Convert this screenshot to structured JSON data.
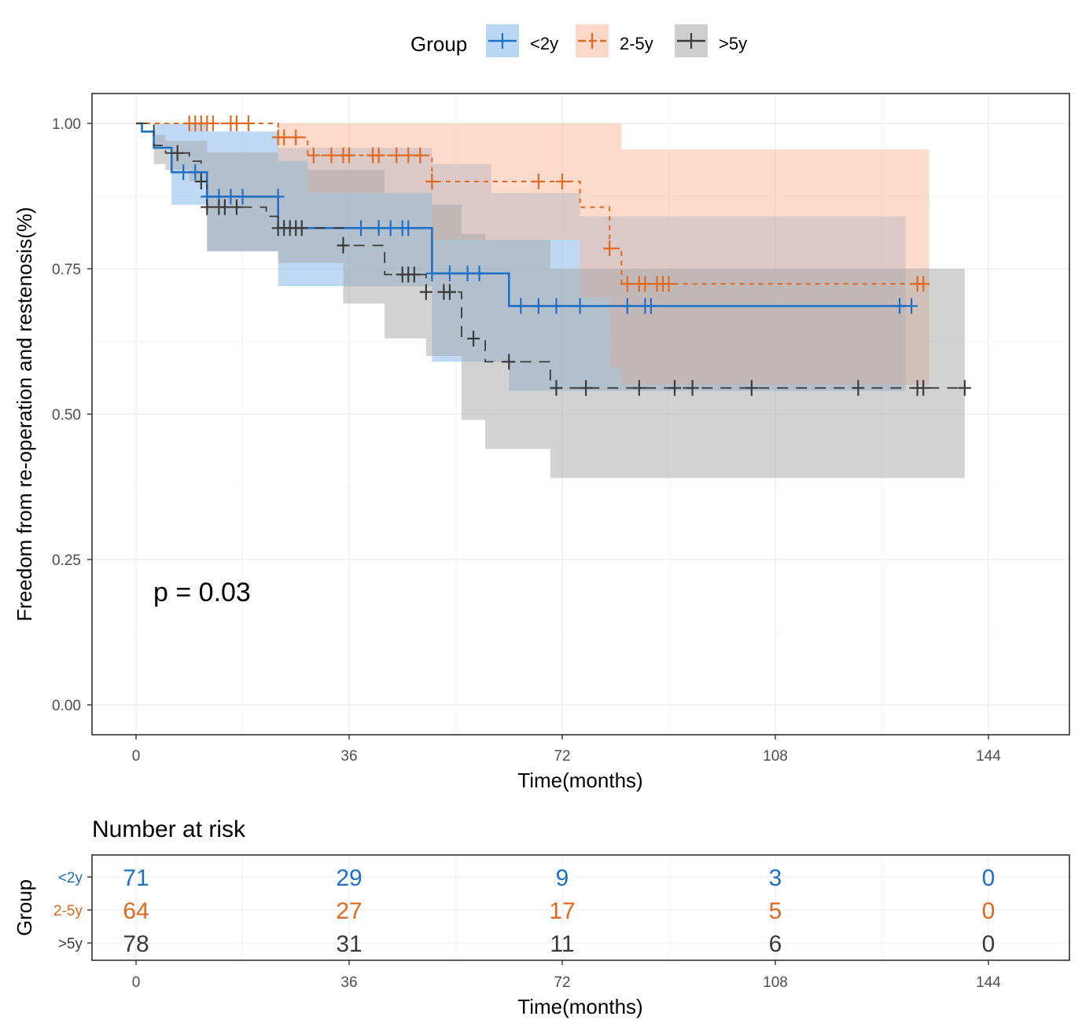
{
  "chart_data": [
    {
      "type": "line",
      "subtype": "kaplan-meier",
      "title": "",
      "xlabel": "Time(months)",
      "ylabel": "Freedom from re-operation and restenosis(%)",
      "xlim": [
        -4,
        146
      ],
      "ylim": [
        -0.05,
        1.05
      ],
      "xticks": [
        0,
        36,
        72,
        108,
        144
      ],
      "xtick_labels": [
        "0",
        "36",
        "72",
        "108",
        "144"
      ],
      "yticks": [
        0,
        0.25,
        0.5,
        0.75,
        1.0
      ],
      "ytick_labels": [
        "0.00",
        "0.25",
        "0.50",
        "0.75",
        "1.00"
      ],
      "grid": true,
      "legend": {
        "title": "Group",
        "position": "top"
      },
      "annotation": "p = 0.03",
      "series": [
        {
          "name": "<2y",
          "color": "#1f6fc6",
          "band_color": "#7fb4ea",
          "linestyle": "solid",
          "steps": [
            [
              0,
              1.0
            ],
            [
              1,
              0.986
            ],
            [
              3,
              0.958
            ],
            [
              6,
              0.916
            ],
            [
              12,
              0.874
            ],
            [
              24,
              0.82
            ],
            [
              50,
              0.742
            ],
            [
              63,
              0.686
            ],
            [
              130,
              0.686
            ]
          ],
          "ci_upper": [
            [
              0,
              1.0
            ],
            [
              3,
              1.0
            ],
            [
              12,
              0.986
            ],
            [
              24,
              0.958
            ],
            [
              50,
              0.93
            ],
            [
              60,
              0.88
            ],
            [
              75,
              0.84
            ],
            [
              130,
              0.84
            ]
          ],
          "ci_lower": [
            [
              0,
              1.0
            ],
            [
              3,
              0.96
            ],
            [
              6,
              0.86
            ],
            [
              12,
              0.78
            ],
            [
              24,
              0.72
            ],
            [
              50,
              0.59
            ],
            [
              63,
              0.54
            ],
            [
              130,
              0.54
            ]
          ],
          "censored": [
            [
              8,
              0.916
            ],
            [
              10,
              0.916
            ],
            [
              12,
              0.874
            ],
            [
              14,
              0.874
            ],
            [
              16,
              0.874
            ],
            [
              18,
              0.874
            ],
            [
              24,
              0.874
            ],
            [
              38,
              0.82
            ],
            [
              41,
              0.82
            ],
            [
              43,
              0.82
            ],
            [
              45,
              0.82
            ],
            [
              46,
              0.82
            ],
            [
              50,
              0.742
            ],
            [
              53,
              0.742
            ],
            [
              56,
              0.742
            ],
            [
              58,
              0.742
            ],
            [
              65,
              0.686
            ],
            [
              68,
              0.686
            ],
            [
              71,
              0.686
            ],
            [
              75,
              0.686
            ],
            [
              83,
              0.686
            ],
            [
              86,
              0.686
            ],
            [
              87,
              0.686
            ],
            [
              129,
              0.686
            ],
            [
              131,
              0.686
            ]
          ]
        },
        {
          "name": "2-5y",
          "color": "#e0681f",
          "band_color": "#f9b89a",
          "linestyle": "dashed",
          "steps": [
            [
              0,
              1.0
            ],
            [
              24,
              0.976
            ],
            [
              29,
              0.945
            ],
            [
              50,
              0.9
            ],
            [
              75,
              0.856
            ],
            [
              80,
              0.785
            ],
            [
              82,
              0.724
            ],
            [
              131,
              0.724
            ]
          ],
          "ci_upper": [
            [
              0,
              1.0
            ],
            [
              80,
              1.0
            ],
            [
              82,
              0.99
            ],
            [
              82,
              0.955
            ],
            [
              134,
              0.955
            ]
          ],
          "ci_lower": [
            [
              0,
              1.0
            ],
            [
              24,
              0.935
            ],
            [
              29,
              0.88
            ],
            [
              50,
              0.8
            ],
            [
              75,
              0.7
            ],
            [
              80,
              0.58
            ],
            [
              82,
              0.55
            ],
            [
              134,
              0.55
            ]
          ],
          "censored": [
            [
              9,
              1.0
            ],
            [
              10,
              1.0
            ],
            [
              11,
              1.0
            ],
            [
              12,
              1.0
            ],
            [
              13,
              1.0
            ],
            [
              16,
              1.0
            ],
            [
              17,
              1.0
            ],
            [
              19,
              1.0
            ],
            [
              24,
              0.976
            ],
            [
              25,
              0.976
            ],
            [
              27,
              0.976
            ],
            [
              30,
              0.945
            ],
            [
              33,
              0.945
            ],
            [
              35,
              0.945
            ],
            [
              36,
              0.945
            ],
            [
              40,
              0.945
            ],
            [
              41,
              0.945
            ],
            [
              44,
              0.945
            ],
            [
              46,
              0.945
            ],
            [
              48,
              0.945
            ],
            [
              50,
              0.9
            ],
            [
              68,
              0.9
            ],
            [
              72,
              0.9
            ],
            [
              80,
              0.785
            ],
            [
              83,
              0.724
            ],
            [
              85,
              0.724
            ],
            [
              86,
              0.724
            ],
            [
              88,
              0.724
            ],
            [
              89,
              0.724
            ],
            [
              90,
              0.724
            ],
            [
              132,
              0.724
            ],
            [
              133,
              0.724
            ]
          ]
        },
        {
          "name": ">5y",
          "color": "#3a3a3a",
          "band_color": "#a6a6a6",
          "linestyle": "longdash",
          "steps": [
            [
              0,
              1.0
            ],
            [
              3,
              0.962
            ],
            [
              5,
              0.949
            ],
            [
              9,
              0.935
            ],
            [
              11,
              0.9
            ],
            [
              12,
              0.856
            ],
            [
              22,
              0.84
            ],
            [
              24,
              0.82
            ],
            [
              35,
              0.79
            ],
            [
              42,
              0.74
            ],
            [
              49,
              0.71
            ],
            [
              55,
              0.63
            ],
            [
              59,
              0.59
            ],
            [
              70,
              0.545
            ],
            [
              140,
              0.545
            ]
          ],
          "ci_upper": [
            [
              0,
              1.0
            ],
            [
              3,
              0.98
            ],
            [
              5,
              0.97
            ],
            [
              12,
              0.95
            ],
            [
              24,
              0.935
            ],
            [
              29,
              0.92
            ],
            [
              42,
              0.88
            ],
            [
              50,
              0.86
            ],
            [
              55,
              0.81
            ],
            [
              59,
              0.8
            ],
            [
              70,
              0.75
            ],
            [
              140,
              0.75
            ]
          ],
          "ci_lower": [
            [
              0,
              1.0
            ],
            [
              3,
              0.93
            ],
            [
              5,
              0.92
            ],
            [
              9,
              0.9
            ],
            [
              12,
              0.78
            ],
            [
              24,
              0.76
            ],
            [
              35,
              0.69
            ],
            [
              42,
              0.63
            ],
            [
              49,
              0.6
            ],
            [
              55,
              0.49
            ],
            [
              59,
              0.44
            ],
            [
              70,
              0.39
            ],
            [
              140,
              0.39
            ]
          ],
          "censored": [
            [
              7,
              0.949
            ],
            [
              11,
              0.9
            ],
            [
              12,
              0.856
            ],
            [
              14,
              0.856
            ],
            [
              15,
              0.856
            ],
            [
              17,
              0.856
            ],
            [
              24,
              0.82
            ],
            [
              25,
              0.82
            ],
            [
              26,
              0.82
            ],
            [
              27,
              0.82
            ],
            [
              28,
              0.82
            ],
            [
              35,
              0.79
            ],
            [
              45,
              0.74
            ],
            [
              46,
              0.74
            ],
            [
              47,
              0.74
            ],
            [
              49,
              0.71
            ],
            [
              52,
              0.71
            ],
            [
              53,
              0.71
            ],
            [
              57,
              0.63
            ],
            [
              63,
              0.59
            ],
            [
              71,
              0.545
            ],
            [
              76,
              0.545
            ],
            [
              85,
              0.545
            ],
            [
              91,
              0.545
            ],
            [
              94,
              0.545
            ],
            [
              104,
              0.545
            ],
            [
              122,
              0.545
            ],
            [
              132,
              0.545
            ],
            [
              133,
              0.545
            ],
            [
              140,
              0.545
            ]
          ]
        }
      ]
    },
    {
      "type": "table",
      "title": "Number at risk",
      "xlabel": "Time(months)",
      "ylabel": "Group",
      "columns": [
        0,
        36,
        72,
        108,
        144
      ],
      "column_labels": [
        "0",
        "36",
        "72",
        "108",
        "144"
      ],
      "rows": [
        {
          "group": "<2y",
          "color": "#1f6fc6",
          "values": [
            "71",
            "29",
            "9",
            "3",
            "0"
          ]
        },
        {
          "group": "2-5y",
          "color": "#e0681f",
          "values": [
            "64",
            "27",
            "17",
            "5",
            "0"
          ]
        },
        {
          "group": ">5y",
          "color": "#3a3a3a",
          "values": [
            "78",
            "31",
            "11",
            "6",
            "0"
          ]
        }
      ]
    }
  ]
}
